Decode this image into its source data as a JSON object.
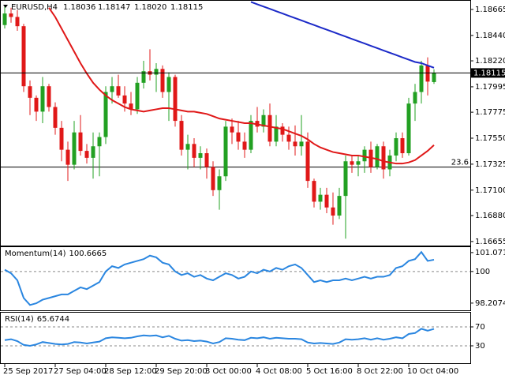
{
  "chart_data": [
    {
      "type": "candlestick",
      "quote": {
        "symbol": "EURUSD,H4",
        "open": 1.18036,
        "high": 1.18147,
        "low": {
          "value": 1.1802,
          "label": "1.18020"
        },
        "close": 1.18115
      },
      "categories": [
        "25 Sep 2017",
        null,
        null,
        null,
        null,
        null,
        null,
        null,
        "27 Sep 04:00",
        null,
        null,
        null,
        null,
        null,
        null,
        null,
        "28 Sep 12:00",
        null,
        null,
        null,
        null,
        null,
        null,
        null,
        "29 Sep 20:00",
        null,
        null,
        null,
        null,
        null,
        null,
        null,
        "3 Oct 00:00",
        null,
        null,
        null,
        null,
        null,
        null,
        null,
        "4 Oct 08:00",
        null,
        null,
        null,
        null,
        null,
        null,
        null,
        "5 Oct 16:00",
        null,
        null,
        null,
        null,
        null,
        null,
        null,
        "8 Oct 22:00",
        null,
        null,
        null,
        null,
        null,
        null,
        null,
        "10 Oct 04:00",
        null,
        null,
        null,
        null
      ],
      "open": [
        1.1853,
        1.1863,
        1.186,
        1.1852,
        1.18,
        1.179,
        1.1778,
        1.18,
        1.1782,
        1.1764,
        1.1745,
        1.1732,
        1.176,
        1.1744,
        1.1738,
        1.1748,
        1.1756,
        1.1795,
        1.18,
        1.1792,
        1.1785,
        1.178,
        1.1803,
        1.1813,
        1.181,
        1.1815,
        1.1795,
        1.1808,
        1.177,
        1.1745,
        1.175,
        1.1738,
        1.1742,
        1.173,
        1.171,
        1.1722,
        1.1765,
        1.176,
        1.1752,
        1.1745,
        1.177,
        1.1765,
        1.1775,
        1.1752,
        1.1765,
        1.1758,
        1.1752,
        1.1748,
        1.1752,
        1.1718,
        1.17,
        1.1706,
        1.1695,
        1.1688,
        1.1705,
        1.1735,
        1.1732,
        1.1735,
        1.1745,
        1.173,
        1.1748,
        1.1728,
        1.174,
        1.1755,
        1.1742,
        1.1785,
        1.1795,
        1.1818,
        1.18036
      ],
      "high": [
        1.187,
        1.1868,
        1.1866,
        1.1854,
        1.1805,
        1.1792,
        1.1808,
        1.1802,
        1.1786,
        1.177,
        1.1752,
        1.177,
        1.1775,
        1.175,
        1.176,
        1.176,
        1.18,
        1.1808,
        1.181,
        1.18,
        1.1795,
        1.1808,
        1.1822,
        1.1832,
        1.182,
        1.1818,
        1.1812,
        1.181,
        1.1775,
        1.1758,
        1.1755,
        1.1748,
        1.1746,
        1.1735,
        1.1728,
        1.177,
        1.1772,
        1.177,
        1.176,
        1.1775,
        1.1782,
        1.178,
        1.1785,
        1.1775,
        1.1768,
        1.1765,
        1.1766,
        1.1775,
        1.176,
        1.172,
        1.1712,
        1.1712,
        1.1708,
        1.1712,
        1.174,
        1.174,
        1.174,
        1.1748,
        1.1752,
        1.175,
        1.1752,
        1.1745,
        1.176,
        1.176,
        1.179,
        1.1802,
        1.1822,
        1.1825,
        1.18147
      ],
      "low": [
        1.185,
        1.1855,
        1.1848,
        1.1795,
        1.1775,
        1.177,
        1.1768,
        1.1778,
        1.1758,
        1.1735,
        1.1718,
        1.1728,
        1.174,
        1.1733,
        1.172,
        1.1722,
        1.175,
        1.1785,
        1.179,
        1.1778,
        1.1775,
        1.1776,
        1.1798,
        1.1805,
        1.1795,
        1.179,
        1.177,
        1.1765,
        1.174,
        1.1728,
        1.173,
        1.1728,
        1.172,
        1.1705,
        1.1693,
        1.1718,
        1.175,
        1.1745,
        1.1738,
        1.1742,
        1.176,
        1.176,
        1.1748,
        1.1748,
        1.1752,
        1.1745,
        1.174,
        1.174,
        1.1712,
        1.1695,
        1.1693,
        1.169,
        1.168,
        1.1685,
        1.1668,
        1.1725,
        1.1722,
        1.1725,
        1.1725,
        1.1728,
        1.172,
        1.1722,
        1.1735,
        1.1738,
        1.174,
        1.177,
        1.1785,
        1.1792,
        1.1802
      ],
      "close": [
        1.1863,
        1.186,
        1.1852,
        1.18,
        1.179,
        1.1778,
        1.18,
        1.1782,
        1.1764,
        1.1745,
        1.1732,
        1.176,
        1.1744,
        1.1738,
        1.1748,
        1.1756,
        1.1795,
        1.18,
        1.1792,
        1.1785,
        1.178,
        1.1803,
        1.1813,
        1.181,
        1.1815,
        1.1795,
        1.1808,
        1.177,
        1.1745,
        1.175,
        1.1738,
        1.1742,
        1.173,
        1.171,
        1.1722,
        1.1765,
        1.176,
        1.1752,
        1.1745,
        1.177,
        1.1765,
        1.1775,
        1.1752,
        1.1765,
        1.1758,
        1.1752,
        1.1748,
        1.1752,
        1.1718,
        1.17,
        1.1706,
        1.1695,
        1.1688,
        1.1705,
        1.1735,
        1.1732,
        1.1735,
        1.1745,
        1.173,
        1.1748,
        1.1728,
        1.174,
        1.1755,
        1.1742,
        1.1785,
        1.1795,
        1.1818,
        1.1804,
        1.18115
      ],
      "up_color": "#22a022",
      "down_color": "#e01818",
      "moving_averages": [
        {
          "color": "#e01818",
          "values": [
            null,
            null,
            null,
            null,
            null,
            null,
            null,
            1.1868,
            1.186,
            1.185,
            1.184,
            1.183,
            1.182,
            1.1811,
            1.1803,
            1.1797,
            1.1792,
            1.1788,
            1.1785,
            1.1782,
            1.178,
            1.1779,
            1.1778,
            1.1779,
            1.178,
            1.1781,
            1.1781,
            1.178,
            1.1779,
            1.1778,
            1.1778,
            1.1777,
            1.1776,
            1.1774,
            1.1772,
            1.1771,
            1.177,
            1.1769,
            1.1768,
            1.1768,
            1.1767,
            1.1766,
            1.1765,
            1.1764,
            1.1763,
            1.1761,
            1.1759,
            1.1757,
            1.1754,
            1.175,
            1.1747,
            1.1745,
            1.1743,
            1.1742,
            1.1741,
            1.174,
            1.174,
            1.1739,
            1.1738,
            1.1737,
            1.1735,
            1.1734,
            1.1733,
            1.1733,
            1.1734,
            1.1736,
            1.174,
            1.1744,
            1.1749
          ]
        },
        {
          "color": "#1c2ac8",
          "values": [
            null,
            null,
            null,
            null,
            null,
            null,
            null,
            null,
            null,
            null,
            null,
            null,
            null,
            null,
            null,
            null,
            null,
            null,
            null,
            null,
            null,
            null,
            null,
            null,
            null,
            null,
            null,
            null,
            null,
            null,
            null,
            null,
            null,
            null,
            null,
            null,
            null,
            null,
            null,
            1.1873,
            1.1871,
            1.1869,
            1.1867,
            1.1865,
            1.1863,
            1.1861,
            1.1859,
            1.1857,
            1.1855,
            1.1853,
            1.1851,
            1.1849,
            1.1847,
            1.1845,
            1.1843,
            1.1841,
            1.1839,
            1.1837,
            1.1835,
            1.1833,
            1.1831,
            1.1829,
            1.1827,
            1.1825,
            1.1823,
            1.1821,
            1.182,
            1.1818,
            1.1816
          ]
        }
      ],
      "level": {
        "label": "23.6",
        "value": 1.173
      },
      "ylim": [
        1.1662,
        1.1874
      ],
      "yticks": [
        1.18665,
        {
          "value": 1.1844,
          "label": "1.18440"
        },
        {
          "value": 1.1822,
          "label": "1.18220"
        },
        1.17995,
        1.17775,
        {
          "value": 1.1755,
          "label": "1.17550"
        },
        1.17325,
        {
          "value": 1.171,
          "label": "1.17100"
        },
        {
          "value": 1.1688,
          "label": "1.16880"
        },
        1.16655
      ]
    },
    {
      "type": "line",
      "name": "Momentum(14)",
      "color": "#2a86e0",
      "values": [
        100.1,
        99.9,
        99.5,
        98.5,
        98.1,
        98.2,
        98.4,
        98.5,
        98.6,
        98.7,
        98.7,
        98.9,
        99.1,
        99.0,
        99.2,
        99.4,
        100.0,
        100.3,
        100.2,
        100.4,
        100.5,
        100.6,
        100.7,
        100.9,
        100.8,
        100.5,
        100.4,
        100.0,
        99.8,
        99.9,
        99.7,
        99.8,
        99.6,
        99.5,
        99.7,
        99.9,
        99.8,
        99.6,
        99.7,
        100.0,
        99.9,
        100.1,
        100.0,
        100.2,
        100.1,
        100.3,
        100.4,
        100.2,
        99.8,
        99.4,
        99.5,
        99.4,
        99.5,
        99.5,
        99.6,
        99.5,
        99.6,
        99.7,
        99.6,
        99.7,
        99.7,
        99.8,
        100.2,
        100.3,
        100.6,
        100.7,
        101.1,
        100.6,
        100.6665
      ],
      "ylim": [
        97.8,
        101.38
      ],
      "yticks": [
        101.0715,
        100,
        98.2074
      ],
      "levels": [
        100
      ]
    },
    {
      "type": "line",
      "name": "RSI(14)",
      "color": "#2a86e0",
      "values": [
        42,
        44,
        40,
        32,
        30,
        33,
        38,
        36,
        34,
        33,
        34,
        38,
        37,
        35,
        37,
        39,
        46,
        48,
        47,
        46,
        47,
        50,
        52,
        51,
        52,
        48,
        51,
        45,
        41,
        42,
        40,
        41,
        39,
        35,
        38,
        46,
        45,
        43,
        42,
        47,
        46,
        48,
        45,
        47,
        46,
        45,
        45,
        44,
        37,
        35,
        36,
        35,
        34,
        37,
        44,
        43,
        44,
        46,
        43,
        46,
        43,
        45,
        48,
        46,
        55,
        57,
        66,
        62,
        65.6744
      ],
      "ylim": [
        0,
        100
      ],
      "yticks": [
        70,
        30
      ],
      "levels": [
        70,
        30
      ]
    }
  ]
}
